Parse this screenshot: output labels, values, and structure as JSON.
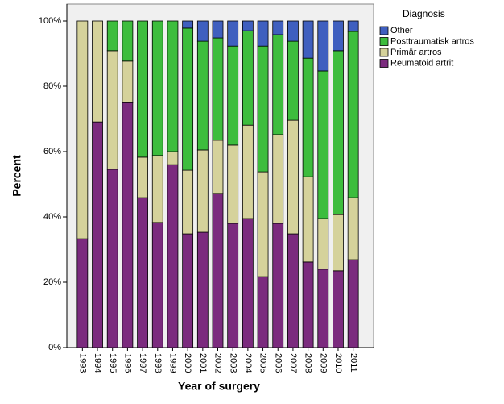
{
  "chart_data": {
    "type": "stacked_bar",
    "x_label": "Year of surgery",
    "y_label": "Percent",
    "legend_title": "Diagnosis",
    "categories": [
      "1993",
      "1994",
      "1995",
      "1996",
      "1997",
      "1998",
      "1999",
      "2000",
      "2001",
      "2002",
      "2003",
      "2004",
      "2005",
      "2006",
      "2007",
      "2008",
      "2009",
      "2010",
      "2011"
    ],
    "series": [
      {
        "name": "Reumatoid artrit",
        "color": "#7b2b7e",
        "values": [
          33.3,
          69.1,
          54.6,
          75.0,
          45.9,
          38.3,
          56.0,
          34.8,
          35.3,
          47.2,
          38.0,
          39.5,
          21.7,
          38.0,
          34.8,
          26.2,
          24.0,
          23.5,
          26.9
        ]
      },
      {
        "name": "Primär artros",
        "color": "#d5d29b",
        "values": [
          66.7,
          30.9,
          36.3,
          12.7,
          12.4,
          20.5,
          4.0,
          19.5,
          25.2,
          16.3,
          24.0,
          28.6,
          32.1,
          27.2,
          34.8,
          26.1,
          15.5,
          17.2,
          19.0
        ]
      },
      {
        "name": "Posttraumatisk artros",
        "color": "#3dbd3d",
        "values": [
          0,
          0,
          9.1,
          12.3,
          41.7,
          41.2,
          40.0,
          43.5,
          33.3,
          31.3,
          30.3,
          28.9,
          38.5,
          30.6,
          24.2,
          36.3,
          45.2,
          50.2,
          50.9
        ]
      },
      {
        "name": "Other",
        "color": "#3f5fbf",
        "values": [
          0,
          0,
          0,
          0,
          0,
          0,
          0,
          2.2,
          6.2,
          5.2,
          7.7,
          3.0,
          7.7,
          4.2,
          6.2,
          11.4,
          15.3,
          9.1,
          3.2
        ]
      }
    ],
    "ylim": [
      0,
      100
    ],
    "yticks": [
      {
        "value": 0,
        "label": "0%"
      },
      {
        "value": 20,
        "label": "20%"
      },
      {
        "value": 40,
        "label": "40%"
      },
      {
        "value": 60,
        "label": "60%"
      },
      {
        "value": 80,
        "label": "80%"
      },
      {
        "value": 100,
        "label": "100%"
      }
    ],
    "legend_position": "right"
  }
}
